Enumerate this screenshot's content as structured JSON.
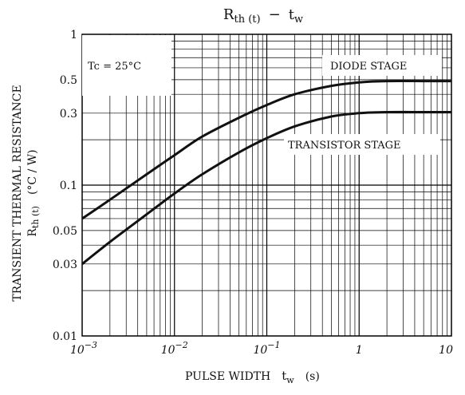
{
  "chart_data": {
    "type": "line",
    "title_main": "R",
    "title_main_sub": "th (t)",
    "title_dash": "−",
    "title_tail": "t",
    "title_tail_sub": "w",
    "xlabel_text": "PULSE WIDTH",
    "xlabel_sym": "t",
    "xlabel_sym_sub": "w",
    "xlabel_unit": "(s)",
    "ylabel_line1": "TRANSIENT THERMAL RESISTANCE",
    "ylabel_sym": "R",
    "ylabel_sym_sub": "th (t)",
    "ylabel_unit": "(°C / W)",
    "x_scale": "log",
    "y_scale": "log",
    "xlim": [
      0.001,
      10
    ],
    "ylim": [
      0.01,
      1
    ],
    "grid": true,
    "x_ticks": [
      {
        "value": 0.001,
        "base": "10",
        "exp": "−3"
      },
      {
        "value": 0.01,
        "base": "10",
        "exp": "−2"
      },
      {
        "value": 0.1,
        "base": "10",
        "exp": "−1"
      },
      {
        "value": 1,
        "base": "1",
        "exp": ""
      },
      {
        "value": 10,
        "base": "10",
        "exp": ""
      }
    ],
    "y_ticks": [
      {
        "value": 1,
        "label": "1"
      },
      {
        "value": 0.5,
        "label": "0.5"
      },
      {
        "value": 0.3,
        "label": "0.3"
      },
      {
        "value": 0.1,
        "label": "0.1"
      },
      {
        "value": 0.05,
        "label": "0.05"
      },
      {
        "value": 0.03,
        "label": "0.03"
      },
      {
        "value": 0.01,
        "label": "0.01"
      }
    ],
    "condition_label": "Tc = 25°C",
    "series": [
      {
        "name": "DIODE STAGE",
        "x": [
          0.001,
          0.002,
          0.005,
          0.01,
          0.02,
          0.05,
          0.1,
          0.2,
          0.5,
          1,
          2,
          5,
          10
        ],
        "y": [
          0.06,
          0.08,
          0.118,
          0.158,
          0.21,
          0.28,
          0.34,
          0.4,
          0.455,
          0.48,
          0.49,
          0.49,
          0.49
        ]
      },
      {
        "name": "TRANSISTOR STAGE",
        "x": [
          0.001,
          0.002,
          0.005,
          0.01,
          0.02,
          0.05,
          0.1,
          0.2,
          0.5,
          1,
          2,
          5,
          10
        ],
        "y": [
          0.03,
          0.042,
          0.064,
          0.088,
          0.118,
          0.165,
          0.205,
          0.245,
          0.285,
          0.3,
          0.305,
          0.305,
          0.305
        ]
      }
    ]
  }
}
